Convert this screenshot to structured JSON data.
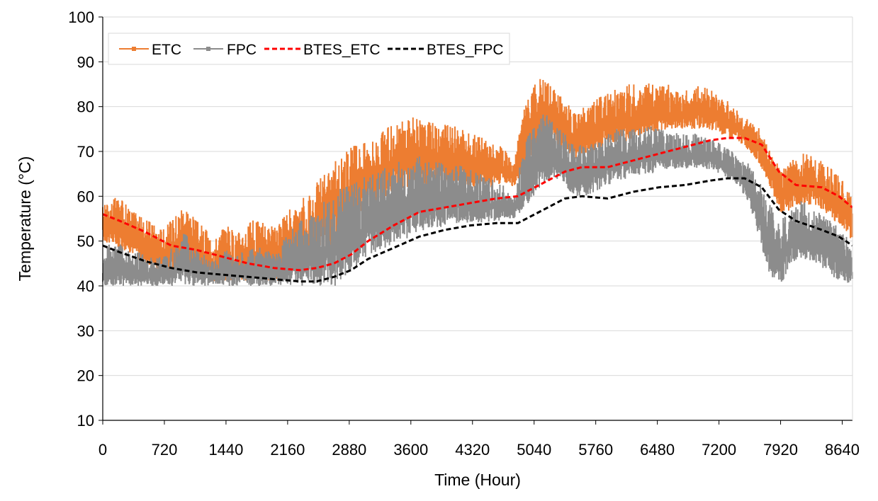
{
  "chart_data": {
    "type": "line",
    "title": "",
    "xlabel": "Time (Hour)",
    "ylabel": "Temperature (°C)",
    "xlim": [
      0,
      8760
    ],
    "ylim": [
      10,
      100
    ],
    "xticks": [
      0,
      720,
      1440,
      2160,
      2880,
      3600,
      4320,
      5040,
      5760,
      6480,
      7200,
      7920,
      8640
    ],
    "yticks": [
      10,
      20,
      30,
      40,
      50,
      60,
      70,
      80,
      90,
      100
    ],
    "grid": "horizontal",
    "legend_position": "top-left",
    "series": [
      {
        "name": "ETC",
        "style": "solid-with-markers",
        "color": "#ED7D31",
        "x": [
          0,
          120,
          240,
          360,
          480,
          600,
          720,
          840,
          960,
          1080,
          1200,
          1320,
          1440,
          1560,
          1680,
          1800,
          1920,
          2040,
          2160,
          2280,
          2400,
          2520,
          2640,
          2760,
          2880,
          3000,
          3120,
          3240,
          3360,
          3480,
          3600,
          3720,
          3840,
          3960,
          4080,
          4200,
          4320,
          4440,
          4560,
          4680,
          4800,
          4920,
          5040,
          5160,
          5280,
          5400,
          5520,
          5640,
          5760,
          5880,
          6000,
          6120,
          6240,
          6360,
          6480,
          6600,
          6720,
          6840,
          6960,
          7080,
          7200,
          7320,
          7440,
          7560,
          7680,
          7800,
          7920,
          8040,
          8160,
          8280,
          8400,
          8520,
          8640,
          8760
        ],
        "low": [
          50,
          49,
          48,
          47,
          45,
          44,
          43,
          43,
          44,
          42,
          41,
          41,
          41,
          41,
          41,
          41,
          41,
          41,
          42,
          43,
          44,
          46,
          48,
          50,
          53,
          56,
          58,
          59,
          60,
          61,
          62,
          62,
          63,
          63,
          63,
          63,
          62,
          62,
          62,
          63,
          62,
          65,
          68,
          71,
          72,
          70,
          68,
          69,
          70,
          72,
          72,
          72,
          73,
          74,
          74,
          75,
          75,
          75,
          75,
          75,
          74,
          73,
          72,
          70,
          67,
          62,
          56,
          57,
          58,
          58,
          57,
          55,
          53,
          50
        ],
        "high": [
          58,
          60,
          59,
          57,
          55,
          54,
          53,
          56,
          60,
          55,
          53,
          51,
          54,
          52,
          54,
          55,
          54,
          53,
          57,
          59,
          61,
          64,
          66,
          69,
          71,
          72,
          73,
          74,
          76,
          77,
          78,
          77,
          77,
          76,
          76,
          75,
          74,
          73,
          72,
          71,
          67,
          80,
          85,
          87,
          84,
          82,
          79,
          80,
          82,
          83,
          84,
          85,
          85,
          86,
          85,
          85,
          84,
          84,
          85,
          84,
          83,
          81,
          79,
          77,
          75,
          70,
          66,
          68,
          70,
          69,
          68,
          66,
          64,
          60
        ]
      },
      {
        "name": "FPC",
        "style": "solid-with-markers",
        "color": "#8C8C8C",
        "x": [
          0,
          120,
          240,
          360,
          480,
          600,
          720,
          840,
          960,
          1080,
          1200,
          1320,
          1440,
          1560,
          1680,
          1800,
          1920,
          2040,
          2160,
          2280,
          2400,
          2520,
          2640,
          2760,
          2880,
          3000,
          3120,
          3240,
          3360,
          3480,
          3600,
          3720,
          3840,
          3960,
          4080,
          4200,
          4320,
          4440,
          4560,
          4680,
          4800,
          4920,
          5040,
          5160,
          5280,
          5400,
          5520,
          5640,
          5760,
          5880,
          6000,
          6120,
          6240,
          6360,
          6480,
          6600,
          6720,
          6840,
          6960,
          7080,
          7200,
          7320,
          7440,
          7560,
          7680,
          7800,
          7920,
          8040,
          8160,
          8280,
          8400,
          8520,
          8640,
          8760
        ],
        "low": [
          40,
          40,
          40,
          40,
          40,
          40,
          40,
          40,
          40,
          40,
          40,
          40,
          40,
          40,
          40,
          40,
          40,
          40,
          40,
          40,
          40,
          40,
          40,
          40,
          43,
          45,
          47,
          48,
          49,
          50,
          51,
          52,
          53,
          53,
          54,
          54,
          54,
          54,
          54,
          55,
          55,
          57,
          60,
          63,
          64,
          62,
          60,
          60,
          61,
          62,
          63,
          64,
          64,
          65,
          65,
          66,
          66,
          66,
          66,
          66,
          65,
          64,
          62,
          58,
          50,
          42,
          40,
          45,
          46,
          45,
          44,
          42,
          41,
          40
        ],
        "high": [
          48,
          50,
          49,
          48,
          47,
          46,
          47,
          49,
          52,
          48,
          47,
          46,
          48,
          47,
          48,
          49,
          48,
          48,
          52,
          54,
          56,
          58,
          60,
          62,
          63,
          64,
          65,
          66,
          67,
          68,
          69,
          69,
          68,
          68,
          67,
          67,
          66,
          65,
          64,
          63,
          59,
          72,
          76,
          79,
          76,
          74,
          71,
          72,
          73,
          74,
          75,
          75,
          75,
          76,
          75,
          75,
          74,
          74,
          74,
          73,
          72,
          71,
          69,
          67,
          63,
          58,
          55,
          57,
          59,
          58,
          56,
          55,
          53,
          48
        ]
      },
      {
        "name": "BTES_ETC",
        "style": "dashed",
        "color": "#FF0000",
        "x": [
          0,
          200,
          500,
          800,
          1100,
          1400,
          1700,
          2000,
          2300,
          2500,
          2700,
          2900,
          3100,
          3400,
          3700,
          4000,
          4300,
          4600,
          4850,
          5100,
          5400,
          5600,
          5900,
          6200,
          6500,
          6800,
          7100,
          7300,
          7500,
          7700,
          7900,
          8100,
          8400,
          8600,
          8760
        ],
        "y": [
          56,
          54.5,
          52,
          49,
          48,
          46.5,
          45,
          44,
          43.5,
          44,
          45,
          47,
          50,
          53.5,
          56.5,
          57.5,
          58.5,
          59.5,
          60,
          62.5,
          65.5,
          66.5,
          66.5,
          68,
          69.5,
          71,
          72.5,
          73,
          73,
          71.5,
          65.5,
          62.5,
          62,
          60,
          57.5
        ]
      },
      {
        "name": "BTES_FPC",
        "style": "dashed",
        "color": "#000000",
        "x": [
          0,
          200,
          500,
          800,
          1100,
          1400,
          1700,
          2000,
          2300,
          2500,
          2700,
          2900,
          3100,
          3400,
          3700,
          4000,
          4300,
          4600,
          4850,
          5100,
          5400,
          5600,
          5900,
          6200,
          6500,
          6800,
          7100,
          7300,
          7500,
          7700,
          7900,
          8100,
          8400,
          8600,
          8760
        ],
        "y": [
          49,
          47.5,
          45.5,
          44,
          43,
          42.5,
          42,
          41.5,
          41,
          41,
          42,
          43.5,
          46,
          48.5,
          51,
          52.5,
          53.5,
          54,
          54,
          56.5,
          59.5,
          60,
          59.5,
          61,
          62,
          62.5,
          63.5,
          64,
          64,
          62,
          57,
          54.5,
          52.5,
          51,
          49
        ]
      }
    ]
  }
}
